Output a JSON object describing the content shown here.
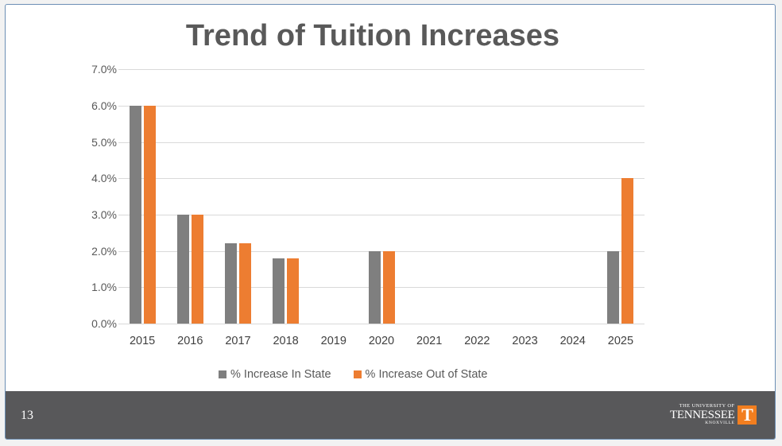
{
  "slide": {
    "title": "Trend of Tuition Increases",
    "page_number": "13",
    "logo": {
      "line1": "THE UNIVERSITY OF",
      "line2": "TENNESSEE",
      "line3": "KNOXVILLE",
      "mark": "T"
    }
  },
  "colors": {
    "in_state": "#7f7f7f",
    "out_of_state": "#ed7d31",
    "footer": "#58585a",
    "logo_orange": "#f27e1f"
  },
  "chart_data": {
    "type": "bar",
    "title": "Trend of Tuition Increases",
    "xlabel": "",
    "ylabel": "",
    "ylim": [
      0,
      0.07
    ],
    "yticks": [
      "0.0%",
      "1.0%",
      "2.0%",
      "3.0%",
      "4.0%",
      "5.0%",
      "6.0%",
      "7.0%"
    ],
    "grid": true,
    "legend_position": "bottom",
    "categories": [
      "2015",
      "2016",
      "2017",
      "2018",
      "2019",
      "2020",
      "2021",
      "2022",
      "2023",
      "2024",
      "2025"
    ],
    "series": [
      {
        "name": "% Increase In State",
        "values": [
          6.0,
          3.0,
          2.2,
          1.8,
          0,
          2.0,
          0,
          0,
          0,
          0,
          2.0
        ]
      },
      {
        "name": "% Increase Out of State",
        "values": [
          6.0,
          3.0,
          2.2,
          1.8,
          0,
          2.0,
          0,
          0,
          0,
          0,
          4.0
        ]
      }
    ]
  }
}
